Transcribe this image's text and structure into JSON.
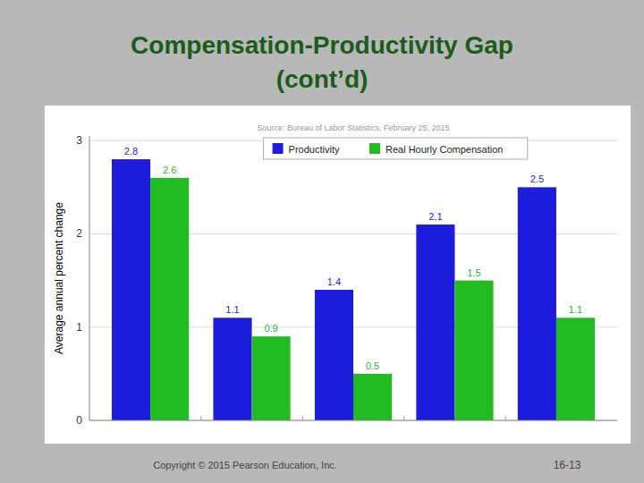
{
  "chart_data": {
    "type": "bar",
    "title": "Compensation-Productivity Gap",
    "subtitle": "(cont’d)",
    "ylabel": "Average annual percent change",
    "categories": [
      null,
      null,
      null,
      null,
      null
    ],
    "series": [
      {
        "name": "Productivity",
        "color": "#1c1cdd",
        "values": [
          2.8,
          1.1,
          1.4,
          2.1,
          2.5
        ]
      },
      {
        "name": "Real Hourly Compensation",
        "color": "#22bb22",
        "values": [
          2.6,
          0.9,
          0.5,
          1.5,
          1.1
        ]
      }
    ],
    "ylim": [
      0,
      3.05
    ],
    "yticks": [
      0,
      1,
      2,
      3
    ],
    "grid": true,
    "legend": "top",
    "data_labels": true,
    "annotations": [
      "Source: Bureau of Labor Statistics, February 25, 2015",
      "Copyright © 2015 Pearson Education, Inc.",
      "16-13"
    ]
  }
}
